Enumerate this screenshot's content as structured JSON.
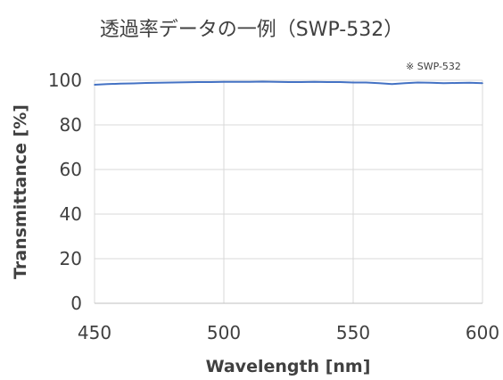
{
  "chart_data": {
    "type": "line",
    "title": "透過率データの一例（SWP-532）",
    "xlabel": "Wavelength [nm]",
    "ylabel": "Transmittance [%]",
    "xlim": [
      450,
      600
    ],
    "ylim": [
      0,
      100
    ],
    "xticks": [
      "450",
      "500",
      "550",
      "600"
    ],
    "yticks": [
      "0",
      "20",
      "40",
      "60",
      "80",
      "100"
    ],
    "grid": true,
    "legend": "none",
    "annotation": "※ SWP-532",
    "series": [
      {
        "color": "#4472C4",
        "x": [
          450,
          455,
          460,
          465,
          470,
          475,
          480,
          485,
          490,
          495,
          500,
          505,
          510,
          515,
          520,
          525,
          530,
          535,
          540,
          545,
          550,
          555,
          560,
          565,
          570,
          575,
          580,
          585,
          590,
          595,
          600
        ],
        "y": [
          98.0,
          98.3,
          98.5,
          98.6,
          98.8,
          98.9,
          99.0,
          99.1,
          99.2,
          99.2,
          99.3,
          99.3,
          99.3,
          99.4,
          99.3,
          99.2,
          99.2,
          99.3,
          99.2,
          99.2,
          99.0,
          99.0,
          98.7,
          98.3,
          98.7,
          99.0,
          98.9,
          98.7,
          98.8,
          98.9,
          98.7
        ]
      }
    ]
  }
}
